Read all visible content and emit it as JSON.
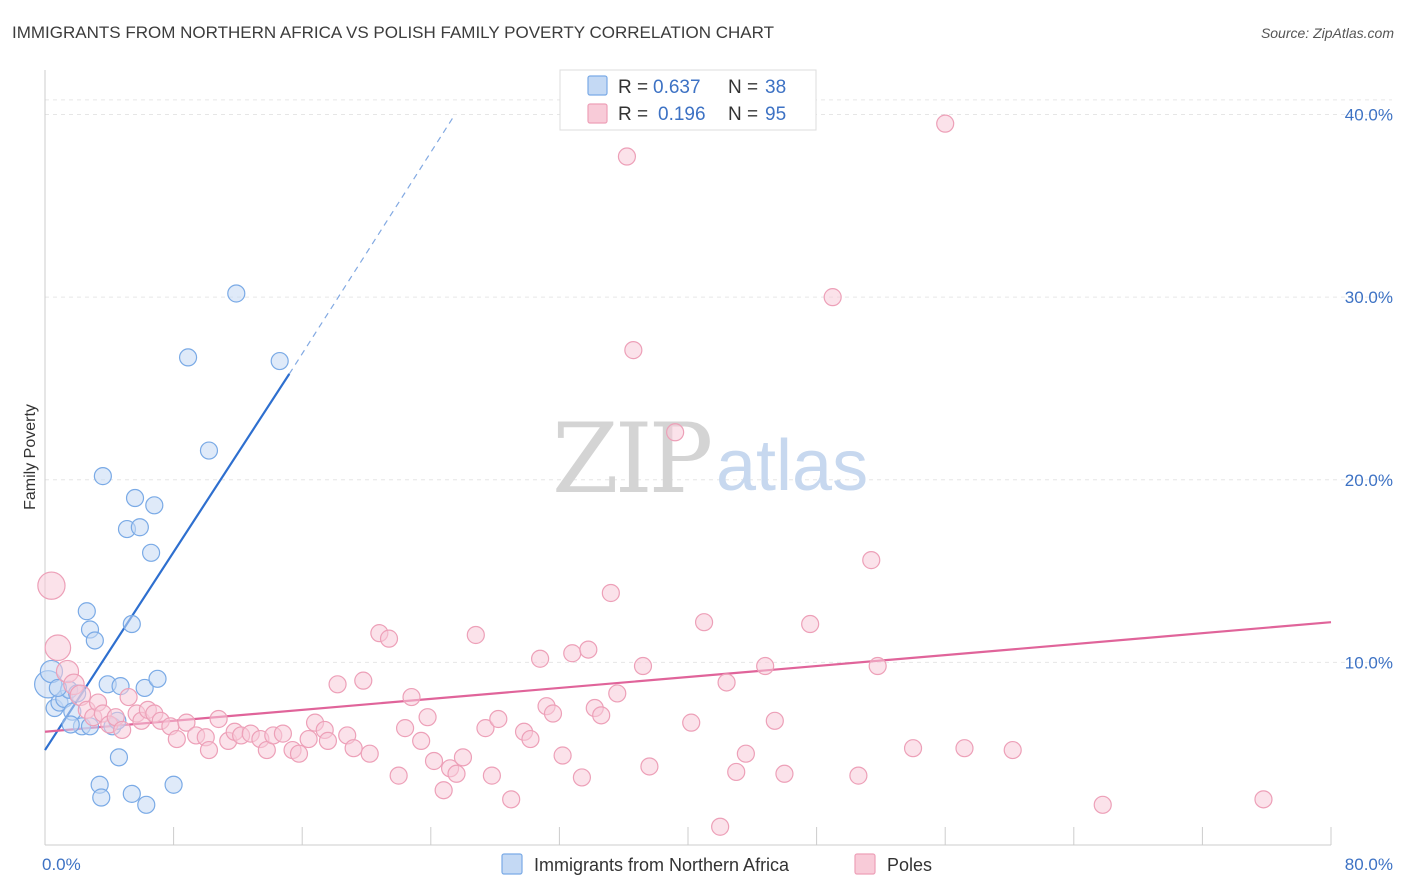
{
  "chart_data": {
    "type": "scatter",
    "title": "IMMIGRANTS FROM NORTHERN AFRICA VS POLISH FAMILY POVERTY CORRELATION CHART",
    "source": "Source: ZipAtlas.com",
    "xlabel": "",
    "ylabel": "Family Poverty",
    "xlim": [
      0,
      80
    ],
    "ylim": [
      0,
      42
    ],
    "x_tick_labels": [
      "0.0%",
      "80.0%"
    ],
    "y_tick_labels": [
      {
        "value": 10,
        "label": "10.0%"
      },
      {
        "value": 20,
        "label": "20.0%"
      },
      {
        "value": 30,
        "label": "30.0%"
      },
      {
        "value": 40,
        "label": "40.0%"
      }
    ],
    "grid": true,
    "watermark": {
      "zip": "ZIP",
      "atlas": "atlas"
    },
    "legend": {
      "entries": [
        {
          "r_label": "R =",
          "r_value": "0.637",
          "n_label": "N =",
          "n_value": "38"
        },
        {
          "r_label": "R =",
          "r_value": "0.196",
          "n_label": "N =",
          "n_value": "95"
        }
      ]
    },
    "series": [
      {
        "name": "Immigrants from Northern Africa",
        "color": "#7aaae6",
        "fill": "#c4d9f4",
        "line_color": "#2e6fcf",
        "trend": {
          "x1": 0,
          "y1": 5.2,
          "x2": 15.2,
          "y2": 25.8,
          "dash_x2": 25.5,
          "dash_y2": 40.0
        },
        "points": [
          [
            0.2,
            8.8,
            1.6
          ],
          [
            0.4,
            9.5,
            1.3
          ],
          [
            0.6,
            7.5,
            1
          ],
          [
            0.9,
            7.8,
            1
          ],
          [
            1.2,
            8.0,
            1
          ],
          [
            1.5,
            8.5,
            1
          ],
          [
            1.7,
            7.3,
            1
          ],
          [
            2.0,
            8.3,
            1
          ],
          [
            2.3,
            6.5,
            1
          ],
          [
            0.8,
            8.6,
            1
          ],
          [
            2.6,
            12.8,
            1
          ],
          [
            2.8,
            11.8,
            1
          ],
          [
            3.1,
            11.2,
            1
          ],
          [
            3.6,
            20.2,
            1
          ],
          [
            3.9,
            8.8,
            1
          ],
          [
            4.2,
            6.5,
            1
          ],
          [
            4.5,
            6.8,
            1
          ],
          [
            4.6,
            4.8,
            1
          ],
          [
            4.7,
            8.7,
            1
          ],
          [
            5.1,
            17.3,
            1
          ],
          [
            5.4,
            12.1,
            1
          ],
          [
            5.6,
            19.0,
            1
          ],
          [
            5.9,
            17.4,
            1
          ],
          [
            6.2,
            8.6,
            1
          ],
          [
            6.6,
            16.0,
            1
          ],
          [
            6.8,
            18.6,
            1
          ],
          [
            7.0,
            9.1,
            1
          ],
          [
            8.9,
            26.7,
            1
          ],
          [
            10.2,
            21.6,
            1
          ],
          [
            11.9,
            30.2,
            1
          ],
          [
            14.6,
            26.5,
            1
          ],
          [
            3.4,
            3.3,
            1
          ],
          [
            3.5,
            2.6,
            1
          ],
          [
            5.4,
            2.8,
            1
          ],
          [
            6.3,
            2.2,
            1
          ],
          [
            8.0,
            3.3,
            1
          ],
          [
            1.6,
            6.6,
            1
          ],
          [
            2.8,
            6.5,
            1
          ]
        ]
      },
      {
        "name": "Poles",
        "color": "#eda0b8",
        "fill": "#f8cbd8",
        "line_color": "#e0649a",
        "trend": {
          "x1": 0,
          "y1": 6.2,
          "x2": 80,
          "y2": 12.2
        },
        "points": [
          [
            0.4,
            14.2,
            1.6
          ],
          [
            0.8,
            10.8,
            1.5
          ],
          [
            1.4,
            9.5,
            1.3
          ],
          [
            1.8,
            8.8,
            1.2
          ],
          [
            2.2,
            8.2,
            1.2
          ],
          [
            2.6,
            7.4,
            1
          ],
          [
            3.0,
            7.0,
            1
          ],
          [
            3.3,
            7.8,
            1
          ],
          [
            3.6,
            7.2,
            1
          ],
          [
            4.0,
            6.6,
            1
          ],
          [
            4.4,
            7.0,
            1
          ],
          [
            4.8,
            6.3,
            1
          ],
          [
            5.2,
            8.1,
            1
          ],
          [
            5.7,
            7.2,
            1
          ],
          [
            6.0,
            6.8,
            1
          ],
          [
            6.4,
            7.4,
            1
          ],
          [
            6.8,
            7.2,
            1
          ],
          [
            7.2,
            6.8,
            1
          ],
          [
            7.8,
            6.5,
            1
          ],
          [
            8.2,
            5.8,
            1
          ],
          [
            8.8,
            6.7,
            1
          ],
          [
            9.4,
            6.0,
            1
          ],
          [
            10.0,
            5.9,
            1
          ],
          [
            10.2,
            5.2,
            1
          ],
          [
            10.8,
            6.9,
            1
          ],
          [
            11.4,
            5.7,
            1
          ],
          [
            11.8,
            6.2,
            1
          ],
          [
            12.2,
            6.0,
            1
          ],
          [
            12.8,
            6.1,
            1
          ],
          [
            13.4,
            5.8,
            1
          ],
          [
            13.8,
            5.2,
            1
          ],
          [
            14.2,
            6.0,
            1
          ],
          [
            14.8,
            6.1,
            1
          ],
          [
            15.4,
            5.2,
            1
          ],
          [
            15.8,
            5.0,
            1
          ],
          [
            16.4,
            5.8,
            1
          ],
          [
            16.8,
            6.7,
            1
          ],
          [
            17.4,
            6.3,
            1
          ],
          [
            17.6,
            5.7,
            1
          ],
          [
            18.2,
            8.8,
            1
          ],
          [
            18.8,
            6.0,
            1
          ],
          [
            19.2,
            5.3,
            1
          ],
          [
            19.8,
            9.0,
            1
          ],
          [
            20.2,
            5.0,
            1
          ],
          [
            20.8,
            11.6,
            1
          ],
          [
            21.4,
            11.3,
            1
          ],
          [
            22.0,
            3.8,
            1
          ],
          [
            22.4,
            6.4,
            1
          ],
          [
            22.8,
            8.1,
            1
          ],
          [
            23.4,
            5.7,
            1
          ],
          [
            23.8,
            7.0,
            1
          ],
          [
            24.2,
            4.6,
            1
          ],
          [
            24.8,
            3.0,
            1
          ],
          [
            25.2,
            4.2,
            1
          ],
          [
            25.6,
            3.9,
            1
          ],
          [
            26.0,
            4.8,
            1
          ],
          [
            26.8,
            11.5,
            1
          ],
          [
            27.4,
            6.4,
            1
          ],
          [
            27.8,
            3.8,
            1
          ],
          [
            28.2,
            6.9,
            1
          ],
          [
            29.0,
            2.5,
            1
          ],
          [
            29.8,
            6.2,
            1
          ],
          [
            30.2,
            5.8,
            1
          ],
          [
            30.8,
            10.2,
            1
          ],
          [
            31.2,
            7.6,
            1
          ],
          [
            31.6,
            7.2,
            1
          ],
          [
            32.2,
            4.9,
            1
          ],
          [
            32.8,
            10.5,
            1
          ],
          [
            33.4,
            3.7,
            1
          ],
          [
            33.8,
            10.7,
            1
          ],
          [
            34.2,
            7.5,
            1
          ],
          [
            34.6,
            7.1,
            1
          ],
          [
            35.2,
            13.8,
            1
          ],
          [
            35.6,
            8.3,
            1
          ],
          [
            36.2,
            37.7,
            1
          ],
          [
            36.6,
            27.1,
            1
          ],
          [
            37.2,
            9.8,
            1
          ],
          [
            37.6,
            4.3,
            1
          ],
          [
            39.2,
            22.6,
            1
          ],
          [
            40.2,
            6.7,
            1
          ],
          [
            41.0,
            12.2,
            1
          ],
          [
            42.0,
            1.0,
            1
          ],
          [
            42.4,
            8.9,
            1
          ],
          [
            43.0,
            4.0,
            1
          ],
          [
            43.6,
            5.0,
            1
          ],
          [
            44.8,
            9.8,
            1
          ],
          [
            45.4,
            6.8,
            1
          ],
          [
            46.0,
            3.9,
            1
          ],
          [
            47.6,
            12.1,
            1
          ],
          [
            49.0,
            30.0,
            1
          ],
          [
            50.6,
            3.8,
            1
          ],
          [
            51.4,
            15.6,
            1
          ],
          [
            51.8,
            9.8,
            1
          ],
          [
            54.0,
            5.3,
            1
          ],
          [
            56.0,
            39.5,
            1
          ]
        ],
        "extra_points": [
          [
            57.2,
            5.3,
            1
          ],
          [
            60.2,
            5.2,
            1
          ],
          [
            65.8,
            2.2,
            1
          ],
          [
            75.8,
            2.5,
            1
          ]
        ]
      }
    ]
  }
}
